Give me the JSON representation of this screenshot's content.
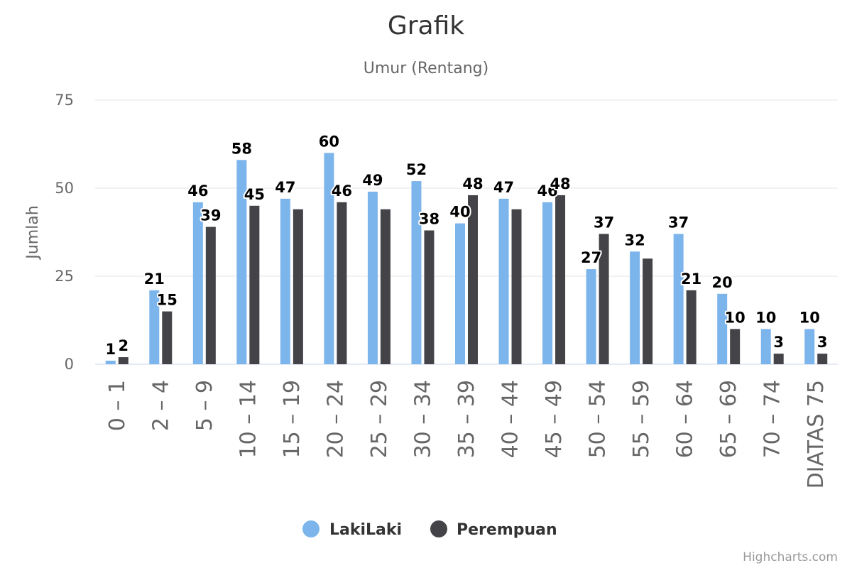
{
  "chart_data": {
    "type": "bar",
    "title": "Grafik",
    "subtitle": "Umur (Rentang)",
    "xlabel": "",
    "ylabel": "Jumlah",
    "ylim": [
      0,
      75
    ],
    "yticks": [
      "0",
      "25",
      "50",
      "75"
    ],
    "grid": true,
    "legend_position": "bottom-center",
    "categories": [
      "0 – 1",
      "2 – 4",
      "5 – 9",
      "10 – 14",
      "15 – 19",
      "20 – 24",
      "25 – 29",
      "30 – 34",
      "35 – 39",
      "40 – 44",
      "45 – 49",
      "50 – 54",
      "55 – 59",
      "60 – 64",
      "65 – 69",
      "70 – 74",
      "DIATAS 75"
    ],
    "series": [
      {
        "name": "LakiLaki",
        "color": "#7cb5ec",
        "values": [
          1,
          21,
          46,
          58,
          47,
          60,
          49,
          52,
          40,
          47,
          46,
          27,
          32,
          37,
          20,
          10,
          10
        ],
        "labels": [
          "1",
          "21",
          "46",
          "58",
          "47",
          "60",
          "49",
          "52",
          "40",
          "47",
          "46",
          "27",
          "32",
          "37",
          "20",
          "10",
          "10"
        ]
      },
      {
        "name": "Perempuan",
        "color": "#434348",
        "values": [
          2,
          15,
          39,
          45,
          44,
          46,
          44,
          38,
          48,
          44,
          48,
          37,
          30,
          21,
          10,
          3,
          3
        ],
        "labels": [
          "2",
          "15",
          "39",
          "45",
          "",
          "46",
          "",
          "38",
          "48",
          "",
          "48",
          "37",
          "",
          "21",
          "10",
          "3",
          "3"
        ]
      }
    ]
  },
  "credits": "Highcharts.com"
}
